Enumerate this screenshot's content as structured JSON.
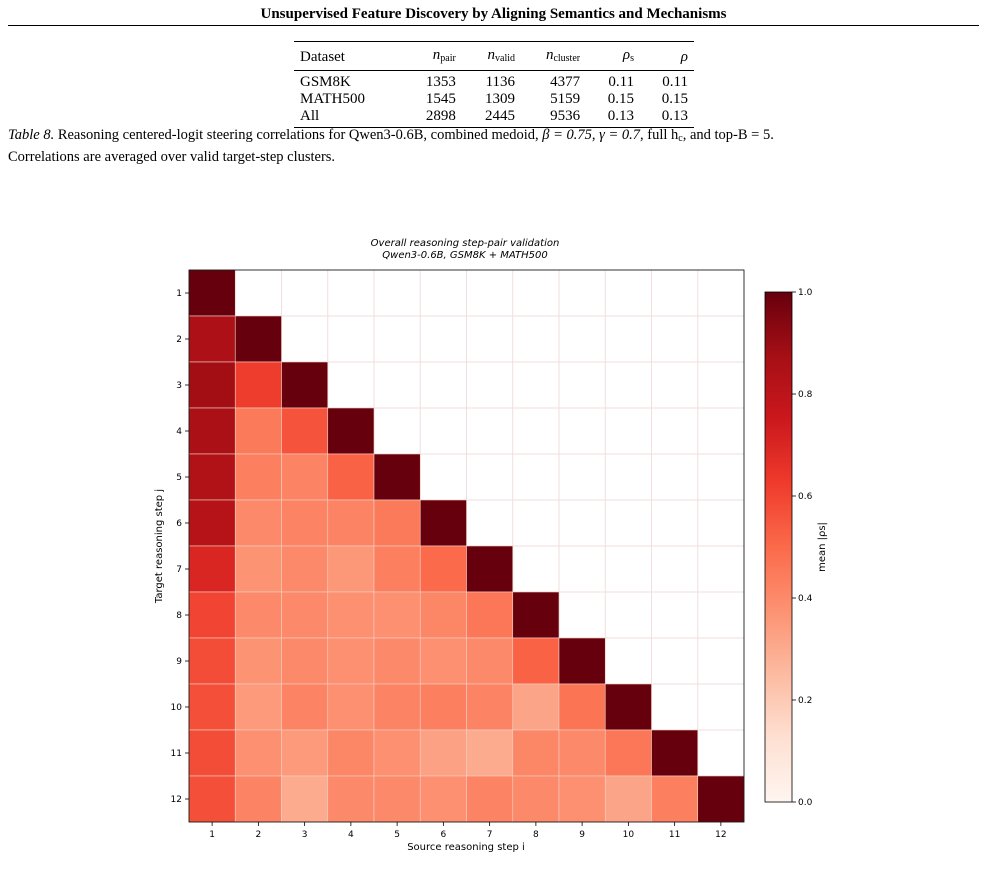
{
  "running_head": "Unsupervised Feature Discovery by Aligning Semantics and Mechanisms",
  "table": {
    "columns": [
      "Dataset",
      "n_pair",
      "n_valid",
      "n_cluster",
      "ρ_s",
      "ρ"
    ],
    "rows": [
      {
        "dataset": "GSM8K",
        "n_pair": "1353",
        "n_valid": "1136",
        "n_cluster": "4377",
        "rho_s": "0.11",
        "rho": "0.11"
      },
      {
        "dataset": "MATH500",
        "n_pair": "1545",
        "n_valid": "1309",
        "n_cluster": "5159",
        "rho_s": "0.15",
        "rho": "0.15"
      },
      {
        "dataset": "All",
        "n_pair": "2898",
        "n_valid": "2445",
        "n_cluster": "9536",
        "rho_s": "0.13",
        "rho": "0.13"
      }
    ]
  },
  "caption": {
    "label": "Table 8.",
    "text1": "Reasoning centered-logit steering correlations for Qwen3-0.6B, combined medoid,",
    "beta": "β = 0.75",
    "gamma": "γ = 0.7",
    "full_hc": "full h",
    "full_hc_sub": "c",
    "topb": "and top-B = 5.",
    "text2": "Correlations are averaged over valid target-step clusters."
  },
  "chart_data": {
    "type": "heatmap",
    "title": "Overall reasoning step-pair validation",
    "subtitle": "Qwen3-0.6B, GSM8K + MATH500",
    "xlabel": "Source reasoning step i",
    "ylabel": "Target reasoning step j",
    "x_categories": [
      "1",
      "2",
      "3",
      "4",
      "5",
      "6",
      "7",
      "8",
      "9",
      "10",
      "11",
      "12"
    ],
    "y_categories": [
      "1",
      "2",
      "3",
      "4",
      "5",
      "6",
      "7",
      "8",
      "9",
      "10",
      "11",
      "12"
    ],
    "colorbar_label": "mean |ρs|",
    "colorbar_range": [
      0.0,
      1.0
    ],
    "colorbar_ticks": [
      "0.0",
      "0.2",
      "0.4",
      "0.6",
      "0.8",
      "1.0"
    ],
    "colormap": "Reds",
    "grid": true,
    "values": [
      [
        1.0,
        null,
        null,
        null,
        null,
        null,
        null,
        null,
        null,
        null,
        null,
        null
      ],
      [
        0.85,
        1.0,
        null,
        null,
        null,
        null,
        null,
        null,
        null,
        null,
        null,
        null
      ],
      [
        0.88,
        0.62,
        1.0,
        null,
        null,
        null,
        null,
        null,
        null,
        null,
        null,
        null
      ],
      [
        0.86,
        0.45,
        0.56,
        1.0,
        null,
        null,
        null,
        null,
        null,
        null,
        null,
        null
      ],
      [
        0.84,
        0.43,
        0.42,
        0.52,
        1.0,
        null,
        null,
        null,
        null,
        null,
        null,
        null
      ],
      [
        0.82,
        0.4,
        0.42,
        0.42,
        0.45,
        1.0,
        null,
        null,
        null,
        null,
        null,
        null
      ],
      [
        0.7,
        0.37,
        0.4,
        0.36,
        0.43,
        0.5,
        1.0,
        null,
        null,
        null,
        null,
        null
      ],
      [
        0.6,
        0.4,
        0.4,
        0.38,
        0.38,
        0.41,
        0.46,
        1.0,
        null,
        null,
        null,
        null
      ],
      [
        0.58,
        0.37,
        0.4,
        0.38,
        0.4,
        0.38,
        0.4,
        0.52,
        1.0,
        null,
        null,
        null
      ],
      [
        0.57,
        0.35,
        0.42,
        0.38,
        0.42,
        0.43,
        0.42,
        0.32,
        0.47,
        1.0,
        null,
        null
      ],
      [
        0.58,
        0.38,
        0.35,
        0.41,
        0.38,
        0.33,
        0.3,
        0.41,
        0.4,
        0.46,
        1.0,
        null
      ],
      [
        0.57,
        0.42,
        0.3,
        0.4,
        0.4,
        0.38,
        0.42,
        0.4,
        0.38,
        0.32,
        0.43,
        1.0
      ]
    ]
  }
}
